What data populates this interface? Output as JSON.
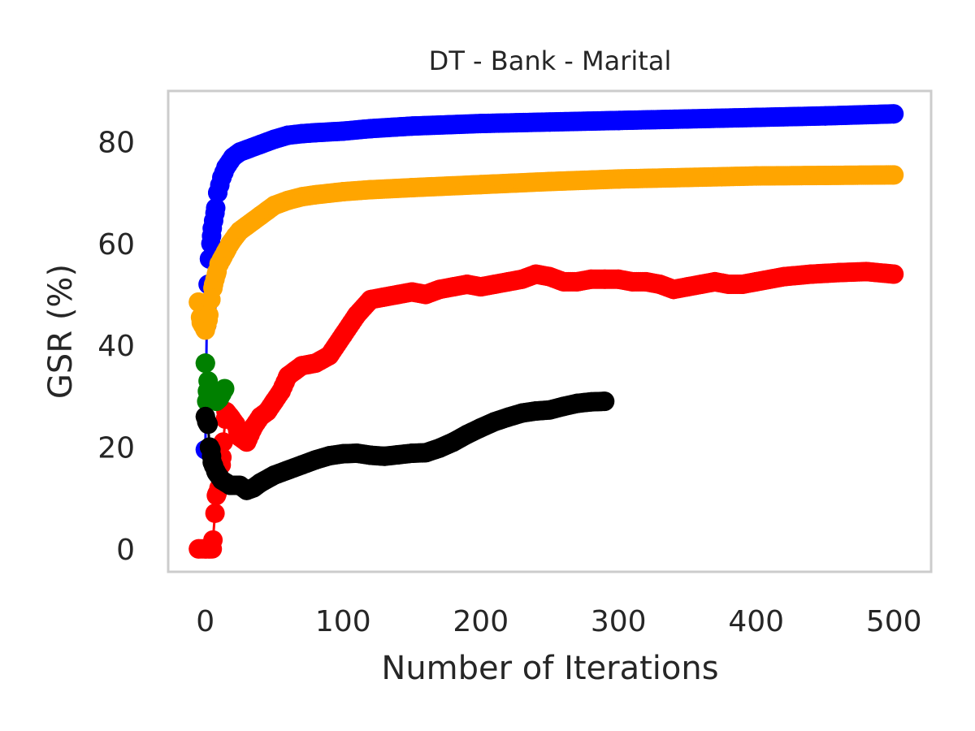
{
  "chart_data": {
    "type": "line",
    "title": "DT - Bank - Marital",
    "xlabel": "Number of Iterations",
    "ylabel": "GSR (%)",
    "xlim": [
      -27,
      527
    ],
    "ylim": [
      -4.5,
      90
    ],
    "xticks": [
      0,
      100,
      200,
      300,
      400,
      500
    ],
    "yticks": [
      0,
      20,
      40,
      60,
      80
    ],
    "xtick_labels": [
      "0",
      "100",
      "200",
      "300",
      "400",
      "500"
    ],
    "ytick_labels": [
      "0",
      "20",
      "40",
      "60",
      "80"
    ],
    "grid": false,
    "legend": "none",
    "series": [
      {
        "color": "#0000ff",
        "points": [
          [
            0,
            19.5
          ],
          [
            1,
            44
          ],
          [
            2,
            52
          ],
          [
            3,
            57
          ],
          [
            4,
            60
          ],
          [
            5,
            63
          ],
          [
            7,
            66
          ],
          [
            9,
            70
          ],
          [
            12,
            73
          ],
          [
            15,
            75
          ],
          [
            20,
            77
          ],
          [
            25,
            78
          ],
          [
            30,
            78.5
          ],
          [
            40,
            79.5
          ],
          [
            50,
            80.5
          ],
          [
            60,
            81.3
          ],
          [
            70,
            81.6
          ],
          [
            80,
            81.8
          ],
          [
            100,
            82.1
          ],
          [
            120,
            82.6
          ],
          [
            150,
            83.1
          ],
          [
            200,
            83.6
          ],
          [
            250,
            83.9
          ],
          [
            300,
            84.2
          ],
          [
            350,
            84.5
          ],
          [
            400,
            84.8
          ],
          [
            450,
            85.1
          ],
          [
            500,
            85.5
          ]
        ]
      },
      {
        "color": "#ffa500",
        "points": [
          [
            -5,
            48.5
          ],
          [
            -3,
            44.5
          ],
          [
            0,
            43
          ],
          [
            2,
            45
          ],
          [
            4,
            49
          ],
          [
            6,
            52
          ],
          [
            8,
            54
          ],
          [
            10,
            56
          ],
          [
            12,
            57
          ],
          [
            15,
            58.5
          ],
          [
            18,
            60
          ],
          [
            22,
            61.5
          ],
          [
            25,
            62.5
          ],
          [
            30,
            63.5
          ],
          [
            35,
            64.5
          ],
          [
            40,
            65.5
          ],
          [
            45,
            66.5
          ],
          [
            50,
            67.5
          ],
          [
            60,
            68.5
          ],
          [
            70,
            69.2
          ],
          [
            80,
            69.6
          ],
          [
            100,
            70.2
          ],
          [
            120,
            70.6
          ],
          [
            150,
            71
          ],
          [
            200,
            71.6
          ],
          [
            250,
            72.2
          ],
          [
            300,
            72.7
          ],
          [
            350,
            73
          ],
          [
            400,
            73.3
          ],
          [
            450,
            73.4
          ],
          [
            500,
            73.5
          ]
        ]
      },
      {
        "color": "#ff0000",
        "points": [
          [
            -5,
            0
          ],
          [
            0,
            0
          ],
          [
            3,
            0
          ],
          [
            5,
            0
          ],
          [
            8,
            10.5
          ],
          [
            10,
            12
          ],
          [
            12,
            18
          ],
          [
            15,
            27
          ],
          [
            18,
            26
          ],
          [
            22,
            24.5
          ],
          [
            25,
            22
          ],
          [
            30,
            21
          ],
          [
            35,
            24
          ],
          [
            40,
            26
          ],
          [
            45,
            27
          ],
          [
            50,
            29
          ],
          [
            55,
            31
          ],
          [
            60,
            34
          ],
          [
            65,
            35
          ],
          [
            70,
            36
          ],
          [
            80,
            36.5
          ],
          [
            90,
            38
          ],
          [
            100,
            42
          ],
          [
            110,
            46
          ],
          [
            120,
            49
          ],
          [
            130,
            49.5
          ],
          [
            140,
            50
          ],
          [
            150,
            50.5
          ],
          [
            160,
            50
          ],
          [
            170,
            51
          ],
          [
            180,
            51.5
          ],
          [
            190,
            52
          ],
          [
            200,
            51.5
          ],
          [
            210,
            52
          ],
          [
            220,
            52.5
          ],
          [
            230,
            53
          ],
          [
            240,
            54
          ],
          [
            250,
            53.5
          ],
          [
            260,
            52.5
          ],
          [
            270,
            52.5
          ],
          [
            280,
            53
          ],
          [
            290,
            53
          ],
          [
            300,
            53
          ],
          [
            310,
            52.5
          ],
          [
            320,
            52.5
          ],
          [
            330,
            52
          ],
          [
            340,
            51
          ],
          [
            350,
            51.5
          ],
          [
            360,
            52
          ],
          [
            370,
            52.5
          ],
          [
            380,
            52
          ],
          [
            390,
            52
          ],
          [
            400,
            52.5
          ],
          [
            420,
            53.5
          ],
          [
            440,
            54
          ],
          [
            460,
            54.3
          ],
          [
            480,
            54.5
          ],
          [
            500,
            54
          ]
        ]
      },
      {
        "color": "#008000",
        "points": [
          [
            0,
            36.5
          ],
          [
            1,
            29
          ],
          [
            2,
            33
          ],
          [
            3,
            30
          ],
          [
            4,
            31.5
          ],
          [
            5,
            30
          ],
          [
            6,
            29.5
          ],
          [
            8,
            29
          ],
          [
            10,
            29.5
          ],
          [
            14,
            31.5
          ]
        ]
      },
      {
        "color": "#000000",
        "points": [
          [
            0,
            26
          ],
          [
            1,
            25
          ],
          [
            2,
            24.5
          ],
          [
            3,
            20
          ],
          [
            4,
            19.5
          ],
          [
            5,
            17
          ],
          [
            8,
            15
          ],
          [
            12,
            13.5
          ],
          [
            18,
            12.5
          ],
          [
            25,
            12.5
          ],
          [
            30,
            11.5
          ],
          [
            35,
            12
          ],
          [
            40,
            13
          ],
          [
            50,
            14.5
          ],
          [
            60,
            15.5
          ],
          [
            70,
            16.5
          ],
          [
            80,
            17.5
          ],
          [
            90,
            18.3
          ],
          [
            100,
            18.7
          ],
          [
            110,
            18.8
          ],
          [
            120,
            18.4
          ],
          [
            130,
            18.2
          ],
          [
            140,
            18.5
          ],
          [
            150,
            18.8
          ],
          [
            160,
            18.9
          ],
          [
            170,
            19.8
          ],
          [
            180,
            21
          ],
          [
            190,
            22.5
          ],
          [
            200,
            23.8
          ],
          [
            210,
            25
          ],
          [
            220,
            25.9
          ],
          [
            230,
            26.7
          ],
          [
            240,
            27.1
          ],
          [
            250,
            27.3
          ],
          [
            260,
            28
          ],
          [
            270,
            28.6
          ],
          [
            280,
            28.9
          ],
          [
            290,
            29
          ]
        ]
      }
    ]
  }
}
